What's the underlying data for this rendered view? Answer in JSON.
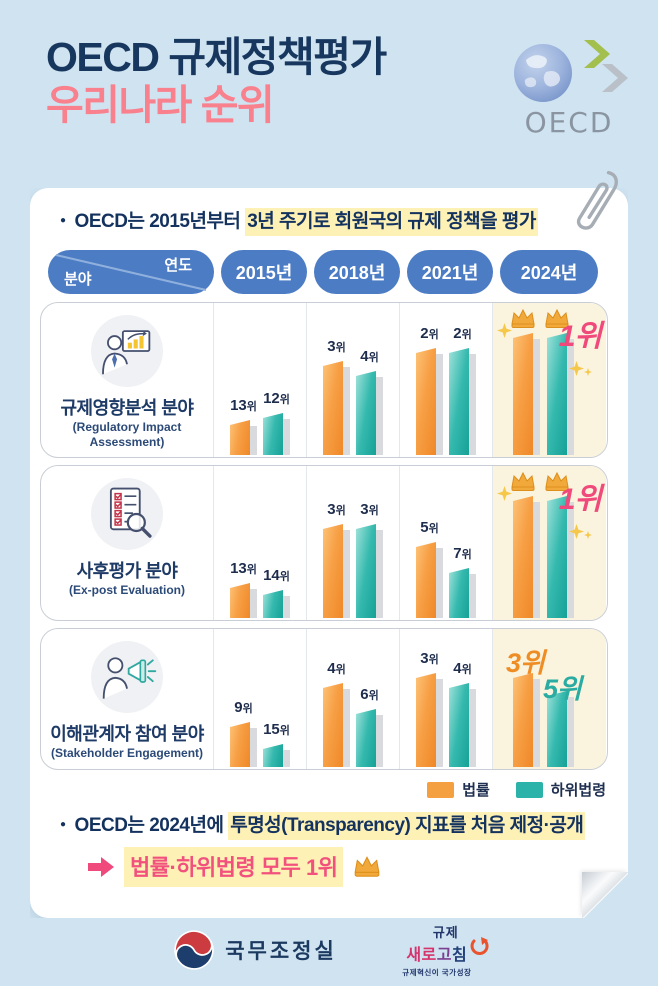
{
  "header": {
    "title_line1": "OECD 규제정책평가",
    "title_line2": "우리나라 순위",
    "oecd_wordmark": "OECD"
  },
  "intro_bullet": {
    "plain": "OECD는 2015년부터 ",
    "highlighted": "3년 주기로 회원국의 규제 정책을 평가"
  },
  "matrix_header": {
    "axis_row": "연도",
    "axis_col": "분야",
    "years": [
      "2015년",
      "2018년",
      "2021년",
      "2024년"
    ]
  },
  "legend": {
    "items": [
      {
        "name": "법률",
        "color": "#f5a040"
      },
      {
        "name": "하위법령",
        "color": "#2bb3aa"
      }
    ]
  },
  "chart_data": {
    "type": "bar",
    "note": "values are OECD ranks in 위 (lower rank = better = drawn taller)",
    "categories": [
      "2015년",
      "2018년",
      "2021년",
      "2024년"
    ],
    "series": [
      "법률",
      "하위법령"
    ],
    "rank_suffix": "위",
    "rows": [
      {
        "field": "규제영향분석 분야",
        "field_en": "(Regulatory Impact Assessment)",
        "icon": "presentation-chart-icon",
        "법률": [
          13,
          3,
          2,
          1
        ],
        "하위법령": [
          12,
          4,
          2,
          1
        ],
        "result_2024": {
          "crowns": true,
          "sparkles": true,
          "big_labels": [
            {
              "text": "1위",
              "color": "#f0497c",
              "pos": "first"
            }
          ]
        }
      },
      {
        "field": "사후평가 분야",
        "field_en": "(Ex-post Evaluation)",
        "icon": "checklist-magnifier-icon",
        "법률": [
          13,
          3,
          5,
          1
        ],
        "하위법령": [
          14,
          3,
          7,
          1
        ],
        "result_2024": {
          "crowns": true,
          "sparkles": true,
          "big_labels": [
            {
              "text": "1위",
              "color": "#f0497c",
              "pos": "first"
            }
          ]
        }
      },
      {
        "field": "이해관계자 참여 분야",
        "field_en": "(Stakeholder Engagement)",
        "icon": "megaphone-person-icon",
        "법률": [
          9,
          4,
          3,
          3
        ],
        "하위법령": [
          15,
          6,
          4,
          5
        ],
        "result_2024": {
          "crowns": false,
          "sparkles": false,
          "big_labels": [
            {
              "text": "3위",
              "color": "#ef8d25",
              "pos": "a"
            },
            {
              "text": "5위",
              "color": "#2aaca3",
              "pos": "b"
            }
          ]
        }
      }
    ]
  },
  "outro_bullet": {
    "plain": "OECD는 2024년에 ",
    "highlighted": "투명성(Transparency) 지표를 처음 제정·공개"
  },
  "conclusion": {
    "text": "법률·하위법령 모두 1위"
  },
  "footer": {
    "gov_logo_text": "국무조정실",
    "brand_line1": "규제",
    "brand_line2_parts": [
      "새로",
      "고",
      "침"
    ],
    "brand_sub": "규제혁신이 국가성장"
  },
  "colors": {
    "page_bg": "#cfe3f1",
    "pill_blue": "#4c7cc4",
    "navy": "#17375e",
    "pink_title": "#f9808d",
    "accent_orange": "#f5a040",
    "accent_teal": "#2bb3aa",
    "rank_pink": "#f0497c",
    "gold_column_bg": "#faf3dd",
    "highlight_yellow": "#fdf1b6"
  }
}
